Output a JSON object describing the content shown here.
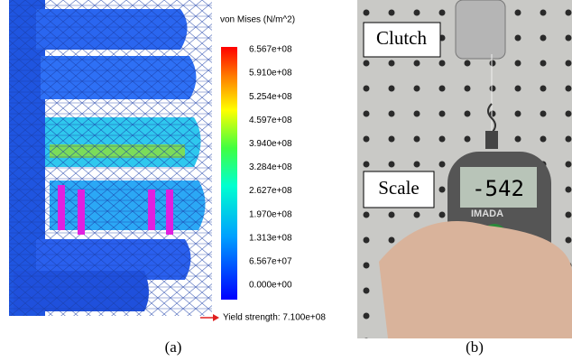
{
  "panel_a": {
    "legend_title": "von Mises (N/m^2)",
    "ticks": [
      "6.567e+08",
      "5.910e+08",
      "5.254e+08",
      "4.597e+08",
      "3.940e+08",
      "3.284e+08",
      "2.627e+08",
      "1.970e+08",
      "1.313e+08",
      "6.567e+07",
      "0.000e+00"
    ],
    "yield_label": "Yield strength: 7.100e+08",
    "caption": "(a)"
  },
  "panel_b": {
    "labels": [
      "Clutch",
      "Scale"
    ],
    "display": "-542",
    "brand": "IMADA",
    "caption": "(b)"
  }
}
